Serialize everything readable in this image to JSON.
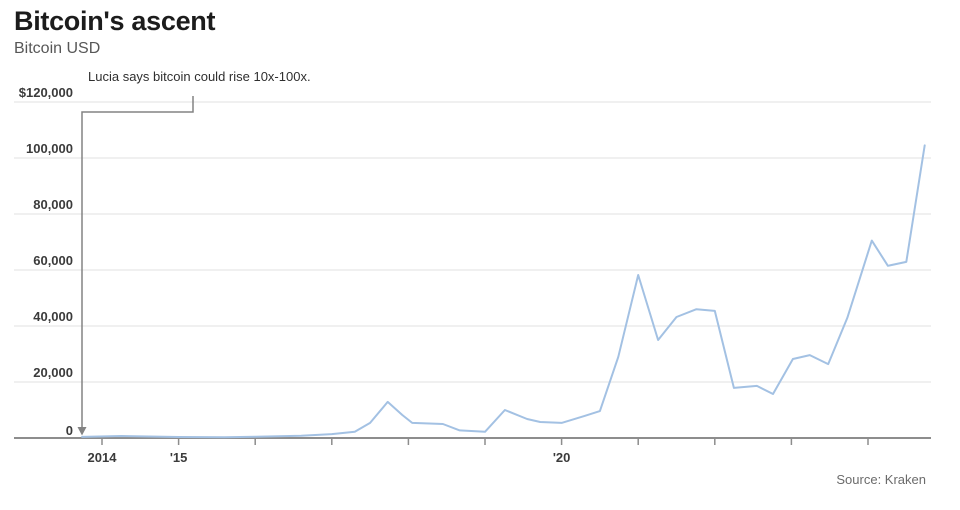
{
  "chart_data": {
    "type": "line",
    "title": "Bitcoin's ascent",
    "subtitle": "Bitcoin USD",
    "source": "Source: Kraken",
    "annotation": {
      "text": "Lucia says bitcoin could rise 10x-100x."
    },
    "xlabel": "",
    "ylabel": "",
    "xlim": [
      2013.74,
      2024.85
    ],
    "ylim": [
      0,
      120000
    ],
    "grid": true,
    "legend": "none",
    "x_ticks": [
      {
        "year": 2014,
        "label": "2014"
      },
      {
        "year": 2015,
        "label": "'15"
      },
      {
        "year": 2016,
        "label": ""
      },
      {
        "year": 2017,
        "label": ""
      },
      {
        "year": 2018,
        "label": ""
      },
      {
        "year": 2019,
        "label": ""
      },
      {
        "year": 2020,
        "label": "'20"
      },
      {
        "year": 2021,
        "label": ""
      },
      {
        "year": 2022,
        "label": ""
      },
      {
        "year": 2023,
        "label": ""
      },
      {
        "year": 2024,
        "label": ""
      }
    ],
    "y_ticks": [
      {
        "value": 0,
        "label": "0"
      },
      {
        "value": 20000,
        "label": "20,000"
      },
      {
        "value": 40000,
        "label": "40,000"
      },
      {
        "value": 60000,
        "label": "60,000"
      },
      {
        "value": 80000,
        "label": "80,000"
      },
      {
        "value": 100000,
        "label": "100,000"
      },
      {
        "value": 120000,
        "label": "$120,000"
      }
    ],
    "series": [
      {
        "name": "Bitcoin USD",
        "color": "#a3c1e3",
        "points": [
          [
            2013.74,
            400
          ],
          [
            2014.25,
            700
          ],
          [
            2015.0,
            350
          ],
          [
            2015.6,
            300
          ],
          [
            2016.0,
            450
          ],
          [
            2016.6,
            800
          ],
          [
            2017.0,
            1400
          ],
          [
            2017.3,
            2200
          ],
          [
            2017.5,
            5400
          ],
          [
            2017.73,
            12900
          ],
          [
            2017.92,
            8200
          ],
          [
            2018.05,
            5400
          ],
          [
            2018.45,
            5000
          ],
          [
            2018.67,
            2700
          ],
          [
            2019.0,
            2200
          ],
          [
            2019.26,
            10000
          ],
          [
            2019.55,
            6800
          ],
          [
            2019.72,
            5700
          ],
          [
            2020.0,
            5400
          ],
          [
            2020.3,
            7900
          ],
          [
            2020.5,
            9600
          ],
          [
            2020.74,
            29000
          ],
          [
            2021.0,
            58200
          ],
          [
            2021.26,
            35000
          ],
          [
            2021.5,
            43200
          ],
          [
            2021.76,
            46000
          ],
          [
            2022.0,
            45400
          ],
          [
            2022.25,
            17900
          ],
          [
            2022.55,
            18600
          ],
          [
            2022.76,
            15700
          ],
          [
            2023.02,
            28200
          ],
          [
            2023.24,
            29600
          ],
          [
            2023.48,
            26400
          ],
          [
            2023.73,
            42900
          ],
          [
            2024.05,
            70500
          ],
          [
            2024.26,
            61500
          ],
          [
            2024.5,
            62900
          ],
          [
            2024.74,
            104500
          ]
        ]
      }
    ],
    "colors": {
      "line": "#a3c1e3",
      "grid": "#ececec",
      "axis": "#8d8d8d",
      "tick_label": "#3b3b3b",
      "callout": "#838383"
    }
  }
}
